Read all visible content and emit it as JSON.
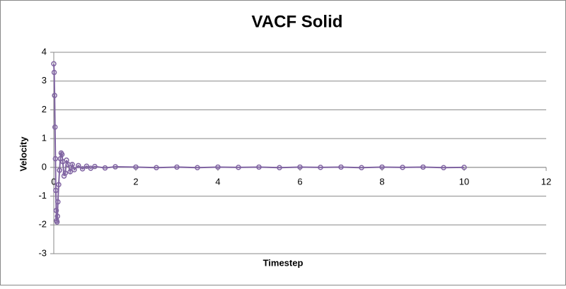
{
  "chart_data": {
    "type": "scatter",
    "title": "VACF Solid",
    "x_label": "Timestep",
    "y_label": "Velocity",
    "x": [
      0,
      0.01,
      0.02,
      0.03,
      0.04,
      0.05,
      0.06,
      0.07,
      0.08,
      0.09,
      0.1,
      0.12,
      0.14,
      0.16,
      0.18,
      0.2,
      0.22,
      0.25,
      0.28,
      0.31,
      0.35,
      0.4,
      0.45,
      0.5,
      0.6,
      0.7,
      0.8,
      0.9,
      1.0,
      1.25,
      1.5,
      2,
      2.5,
      3,
      3.5,
      4,
      4.5,
      5,
      5.5,
      6,
      6.5,
      7,
      7.5,
      8,
      8.5,
      9,
      9.5,
      10
    ],
    "values": [
      3.6,
      3.3,
      2.5,
      1.4,
      0.3,
      -0.8,
      -1.5,
      -1.85,
      -1.9,
      -1.7,
      -1.2,
      -0.6,
      -0.1,
      0.3,
      0.5,
      0.45,
      0.2,
      -0.3,
      -0.2,
      0.25,
      0.1,
      -0.15,
      0.1,
      -0.08,
      0.06,
      -0.05,
      0.04,
      -0.03,
      0.03,
      -0.02,
      0.02,
      0.01,
      -0.01,
      0.01,
      -0.01,
      0.01,
      0,
      0.01,
      -0.01,
      0.01,
      0,
      0.01,
      -0.01,
      0.01,
      0,
      0.01,
      -0.01,
      0
    ],
    "color": "#8064a2",
    "xlim": [
      0,
      12
    ],
    "xticks": [
      0,
      2,
      4,
      6,
      8,
      10,
      12
    ],
    "ylim": [
      -3,
      4
    ],
    "yticks": [
      -3,
      -2,
      -1,
      0,
      1,
      2,
      3,
      4
    ],
    "grid": true
  }
}
